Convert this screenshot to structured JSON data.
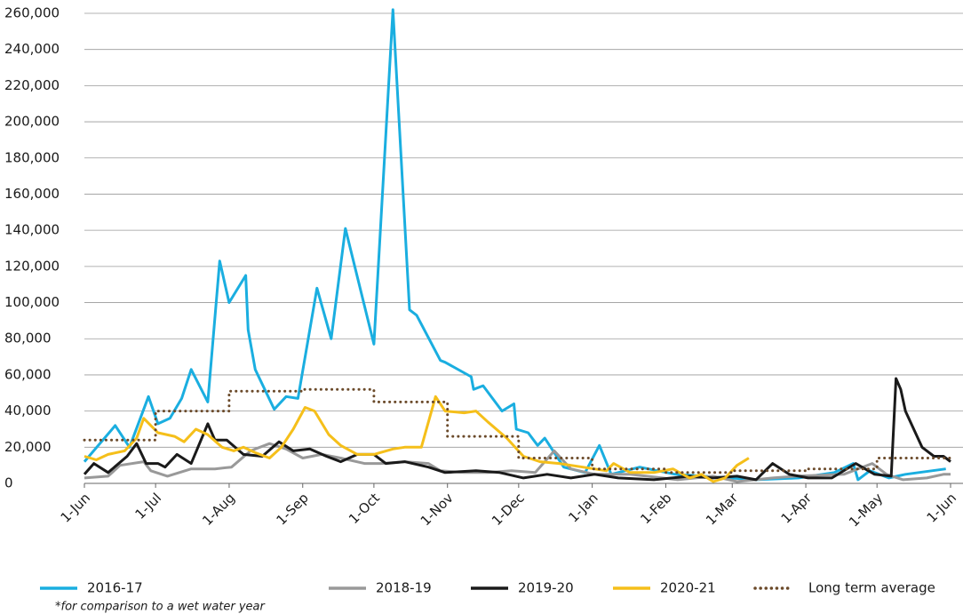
{
  "chart_data": {
    "type": "line",
    "xlim": [
      0,
      365
    ],
    "xticks": [
      {
        "value": 0,
        "label": "1-Jun"
      },
      {
        "value": 30,
        "label": "1-Jul"
      },
      {
        "value": 61,
        "label": "1-Aug"
      },
      {
        "value": 92,
        "label": "1-Sep"
      },
      {
        "value": 122,
        "label": "1-Oct"
      },
      {
        "value": 153,
        "label": "1-Nov"
      },
      {
        "value": 183,
        "label": "1-Dec"
      },
      {
        "value": 214,
        "label": "1-Jan"
      },
      {
        "value": 245,
        "label": "1-Feb"
      },
      {
        "value": 273,
        "label": "1-Mar"
      },
      {
        "value": 304,
        "label": "1-Apr"
      },
      {
        "value": 334,
        "label": "1-May"
      },
      {
        "value": 365,
        "label": "1-Jun"
      }
    ],
    "ylim": [
      0,
      260000
    ],
    "yticks": [
      0,
      {
        "value": 20000,
        "label": "20,000"
      },
      {
        "value": 40000,
        "label": "40,000"
      },
      {
        "value": 60000,
        "label": "60,000"
      },
      {
        "value": 80000,
        "label": "80,000"
      },
      {
        "value": 100000,
        "label": "100,000"
      },
      {
        "value": 120000,
        "label": "120,000"
      },
      {
        "value": 140000,
        "label": "140,000"
      },
      {
        "value": 160000,
        "label": "160,000"
      },
      {
        "value": 180000,
        "label": "180,000"
      },
      {
        "value": 200000,
        "label": "200,000"
      },
      {
        "value": 220000,
        "label": "220,000"
      },
      {
        "value": 240000,
        "label": "240,000"
      },
      {
        "value": 260000,
        "label": "260,000"
      }
    ],
    "grid": true,
    "legend_note": "*for comparison to a wet water year",
    "series": [
      {
        "name": "2016-17",
        "color": "#1aaee0",
        "style": "solid",
        "x": [
          0,
          13,
          19,
          27,
          31,
          36,
          41,
          45,
          52,
          57,
          61,
          68,
          69,
          72,
          80,
          85,
          90,
          98,
          104,
          110,
          122,
          130,
          137,
          140,
          150,
          152,
          163,
          164,
          168,
          176,
          181,
          182,
          187,
          191,
          194,
          202,
          211,
          217,
          222,
          234,
          249,
          283,
          301,
          316,
          324,
          326,
          331,
          339,
          346,
          363
        ],
        "values": [
          12000,
          32000,
          20000,
          48000,
          33000,
          36000,
          47000,
          63000,
          45000,
          123000,
          100000,
          115000,
          85000,
          63000,
          41000,
          48000,
          47000,
          108000,
          80000,
          141000,
          77000,
          262000,
          96000,
          93000,
          68000,
          67000,
          59000,
          52000,
          54000,
          40000,
          44000,
          30000,
          28000,
          21000,
          25000,
          9000,
          6000,
          21000,
          5000,
          9000,
          5000,
          2000,
          3000,
          6000,
          11000,
          2000,
          7000,
          3000,
          5000,
          8000
        ]
      },
      {
        "name": "2018-19",
        "color": "#999999",
        "style": "solid",
        "x": [
          0,
          10,
          15,
          25,
          28,
          35,
          45,
          55,
          62,
          70,
          78,
          85,
          92,
          100,
          108,
          118,
          125,
          135,
          145,
          150,
          160,
          170,
          180,
          190,
          198,
          205,
          215,
          230,
          250,
          265,
          275,
          290,
          300,
          320,
          332,
          338,
          345,
          355,
          362,
          365
        ],
        "values": [
          3000,
          4000,
          10000,
          12000,
          7000,
          4000,
          8000,
          8000,
          9000,
          18000,
          22000,
          19000,
          14000,
          16000,
          14000,
          11000,
          11000,
          12000,
          11000,
          7000,
          6000,
          6000,
          7000,
          6000,
          18000,
          8000,
          5000,
          5000,
          2000,
          4000,
          1000,
          3000,
          4000,
          5000,
          11000,
          5000,
          2000,
          3000,
          5000,
          5000
        ]
      },
      {
        "name": "2019-20",
        "color": "#1a1a1a",
        "style": "solid",
        "x": [
          0,
          4,
          10,
          18,
          22,
          26,
          31,
          34,
          39,
          45,
          52,
          55,
          60,
          67,
          75,
          82,
          88,
          95,
          102,
          108,
          115,
          122,
          127,
          135,
          145,
          152,
          165,
          175,
          185,
          195,
          205,
          215,
          225,
          240,
          255,
          265,
          275,
          283,
          290,
          297,
          305,
          315,
          325,
          333,
          340,
          342,
          344,
          346,
          353,
          358,
          362,
          365
        ],
        "values": [
          5000,
          11000,
          6000,
          15000,
          22000,
          11000,
          11000,
          9000,
          16000,
          11000,
          33000,
          24000,
          24000,
          16000,
          15000,
          23000,
          18000,
          19000,
          15000,
          12000,
          16000,
          16000,
          11000,
          12000,
          9000,
          6000,
          7000,
          6000,
          3000,
          5000,
          3000,
          5000,
          3000,
          2000,
          4000,
          3000,
          4000,
          2000,
          11000,
          5000,
          3000,
          3000,
          11000,
          5000,
          4000,
          58000,
          52000,
          40000,
          20000,
          15000,
          15000,
          12000
        ]
      },
      {
        "name": "2020-21",
        "color": "#f5bf1a",
        "style": "solid",
        "x": [
          0,
          5,
          10,
          17,
          22,
          25,
          28,
          31,
          38,
          42,
          47,
          52,
          58,
          63,
          67,
          72,
          78,
          83,
          88,
          93,
          97,
          103,
          108,
          115,
          122,
          130,
          135,
          142,
          148,
          152,
          160,
          165,
          170,
          178,
          185,
          192,
          200,
          210,
          220,
          223,
          230,
          240,
          248,
          255,
          260,
          265,
          270,
          275,
          280
        ],
        "values": [
          15000,
          13000,
          16000,
          18000,
          25000,
          36000,
          32000,
          28000,
          26000,
          23000,
          30000,
          27000,
          20000,
          18000,
          20000,
          17000,
          14000,
          20000,
          30000,
          42000,
          40000,
          27000,
          21000,
          16000,
          16000,
          19000,
          20000,
          20000,
          48000,
          40000,
          39000,
          40000,
          34000,
          25000,
          15000,
          12000,
          11000,
          9000,
          7000,
          11000,
          6000,
          6000,
          8000,
          3000,
          5000,
          1000,
          3000,
          10000,
          14000
        ]
      },
      {
        "name": "Long term average",
        "color": "#6b4a2a",
        "style": "dotted",
        "x": [
          0,
          30,
          30,
          61,
          61,
          92,
          92,
          122,
          122,
          153,
          153,
          183,
          183,
          214,
          214,
          245,
          245,
          273,
          273,
          304,
          304,
          334,
          334,
          365
        ],
        "values": [
          24000,
          24000,
          40000,
          40000,
          51000,
          51000,
          52000,
          52000,
          45000,
          45000,
          26000,
          26000,
          14000,
          14000,
          8000,
          8000,
          6000,
          6000,
          7000,
          7000,
          8000,
          8000,
          14000,
          14000
        ]
      }
    ]
  }
}
